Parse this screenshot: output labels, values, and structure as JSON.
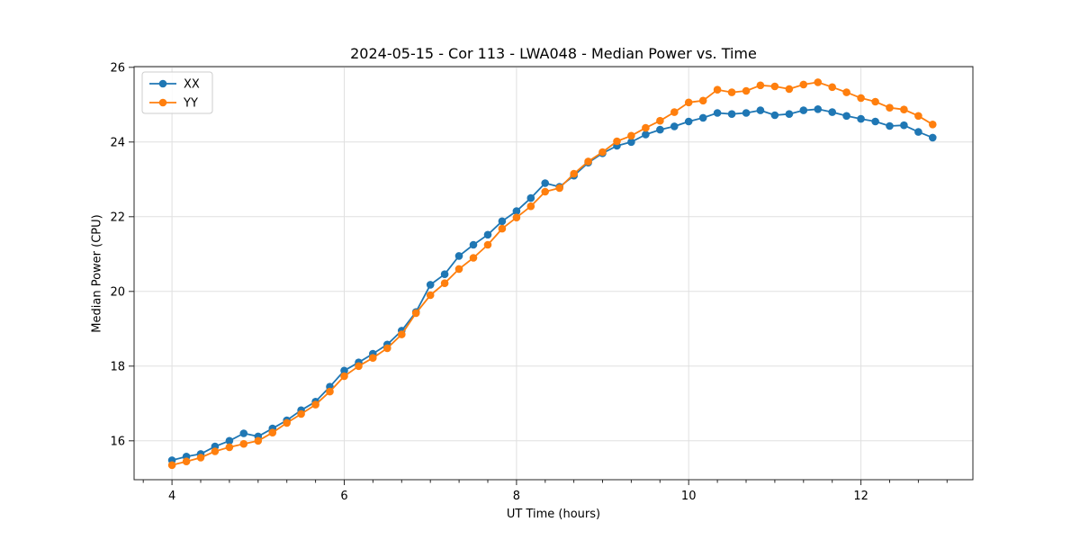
{
  "chart_data": {
    "type": "line",
    "title": "2024-05-15 - Cor 113 - LWA048 - Median Power vs. Time",
    "xlabel": "UT Time (hours)",
    "ylabel": "Median Power (CPU)",
    "xlim": [
      3.56,
      13.3
    ],
    "ylim": [
      14.96,
      26.02
    ],
    "x_major_ticks": [
      4,
      6,
      8,
      10,
      12
    ],
    "x_minor_step": 0.33333,
    "y_major_ticks": [
      16,
      18,
      20,
      22,
      24,
      26
    ],
    "grid": true,
    "grid_color": "#e0e0e0",
    "spine_color": "#262626",
    "legend_position": "upper-left",
    "x": [
      4,
      4.167,
      4.333,
      4.5,
      4.667,
      4.833,
      5,
      5.167,
      5.333,
      5.5,
      5.667,
      5.833,
      6,
      6.167,
      6.333,
      6.5,
      6.667,
      6.833,
      7,
      7.167,
      7.333,
      7.5,
      7.667,
      7.833,
      8,
      8.167,
      8.333,
      8.5,
      8.667,
      8.833,
      9,
      9.167,
      9.333,
      9.5,
      9.667,
      9.833,
      10,
      10.167,
      10.333,
      10.5,
      10.667,
      10.833,
      11,
      11.167,
      11.333,
      11.5,
      11.667,
      11.833,
      12,
      12.167,
      12.333,
      12.5,
      12.667,
      12.833
    ],
    "series": [
      {
        "name": "XX",
        "color": "#1f77b4",
        "values": [
          15.48,
          15.58,
          15.65,
          15.85,
          16.0,
          16.2,
          16.12,
          16.33,
          16.55,
          16.82,
          17.05,
          17.45,
          17.88,
          18.1,
          18.33,
          18.58,
          18.95,
          19.45,
          20.18,
          20.46,
          20.95,
          21.25,
          21.52,
          21.88,
          22.15,
          22.5,
          22.9,
          22.8,
          23.1,
          23.45,
          23.7,
          23.9,
          24.0,
          24.2,
          24.33,
          24.42,
          24.55,
          24.65,
          24.78,
          24.75,
          24.78,
          24.85,
          24.72,
          24.75,
          24.85,
          24.88,
          24.8,
          24.7,
          24.62,
          24.55,
          24.43,
          24.45,
          24.27,
          24.12
        ]
      },
      {
        "name": "YY",
        "color": "#ff7f0e",
        "values": [
          15.35,
          15.45,
          15.55,
          15.72,
          15.83,
          15.92,
          16.0,
          16.22,
          16.48,
          16.72,
          16.97,
          17.32,
          17.73,
          18.0,
          18.22,
          18.48,
          18.85,
          19.42,
          19.9,
          20.22,
          20.6,
          20.9,
          21.25,
          21.68,
          21.98,
          22.28,
          22.67,
          22.77,
          23.15,
          23.48,
          23.73,
          24.02,
          24.17,
          24.38,
          24.57,
          24.8,
          25.06,
          25.11,
          25.4,
          25.33,
          25.37,
          25.52,
          25.49,
          25.42,
          25.54,
          25.6,
          25.47,
          25.33,
          25.18,
          25.08,
          24.92,
          24.87,
          24.7,
          24.47
        ]
      }
    ]
  }
}
